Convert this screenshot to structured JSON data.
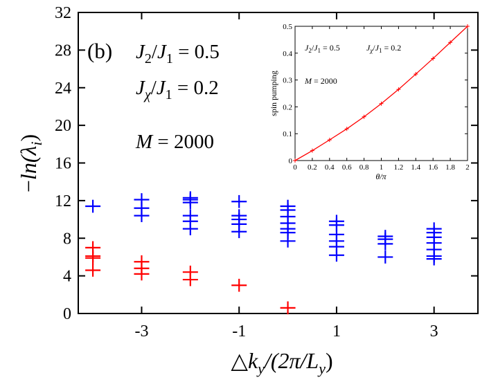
{
  "chart_data": [
    {
      "type": "scatter",
      "title": "",
      "xlabel": "△k_y/(2π/L_y)",
      "ylabel": "−ln(λ_i)",
      "xlim": [
        -4.3,
        3.9
      ],
      "ylim": [
        0,
        32
      ],
      "x_ticks": [
        -3,
        -1,
        1,
        3
      ],
      "x_tick_labels": [
        "-3",
        "-1",
        "1",
        "3"
      ],
      "y_ticks": [
        0,
        4,
        8,
        12,
        16,
        20,
        24,
        28,
        32
      ],
      "y_tick_labels": [
        "0",
        "4",
        "8",
        "12",
        "16",
        "20",
        "24",
        "28",
        "32"
      ],
      "panel_label": "(b)",
      "annotations": [
        "J₂/J₁ = 0.5",
        "J_χ/J₁ = 0.2",
        "M = 2000"
      ],
      "marker": "+",
      "series": [
        {
          "name": "red",
          "color": "#ff0000",
          "points": [
            [
              -4,
              4.6
            ],
            [
              -4,
              5.9
            ],
            [
              -4,
              6.1
            ],
            [
              -4,
              7.0
            ],
            [
              -3,
              4.2
            ],
            [
              -3,
              4.8
            ],
            [
              -3,
              5.5
            ],
            [
              -2,
              3.6
            ],
            [
              -2,
              4.4
            ],
            [
              -1,
              3.0
            ],
            [
              0,
              0.6
            ]
          ]
        },
        {
          "name": "blue",
          "color": "#0000ff",
          "points": [
            [
              -4,
              11.4
            ],
            [
              -3,
              10.4
            ],
            [
              -3,
              11.2
            ],
            [
              -3,
              12.1
            ],
            [
              -2,
              9.0
            ],
            [
              -2,
              9.8
            ],
            [
              -2,
              10.4
            ],
            [
              -2,
              11.8
            ],
            [
              -2,
              12.1
            ],
            [
              -2,
              12.3
            ],
            [
              -1,
              8.7
            ],
            [
              -1,
              9.5
            ],
            [
              -1,
              10.0
            ],
            [
              -1,
              10.4
            ],
            [
              -1,
              11.9
            ],
            [
              0,
              7.7
            ],
            [
              0,
              8.6
            ],
            [
              0,
              9.0
            ],
            [
              0,
              9.6
            ],
            [
              0,
              10.3
            ],
            [
              0,
              11.0
            ],
            [
              0,
              11.4
            ],
            [
              1,
              6.2
            ],
            [
              1,
              7.1
            ],
            [
              1,
              7.7
            ],
            [
              1,
              8.4
            ],
            [
              1,
              9.4
            ],
            [
              1,
              9.8
            ],
            [
              2,
              6.0
            ],
            [
              2,
              7.4
            ],
            [
              2,
              7.9
            ],
            [
              2,
              8.2
            ],
            [
              3,
              5.8
            ],
            [
              3,
              6.1
            ],
            [
              3,
              6.8
            ],
            [
              3,
              7.5
            ],
            [
              3,
              8.1
            ],
            [
              3,
              8.6
            ],
            [
              3,
              9.0
            ]
          ]
        }
      ]
    },
    {
      "type": "line",
      "title": "",
      "xlabel": "θ/π",
      "ylabel": "spin pumping",
      "xlim": [
        0,
        2
      ],
      "ylim": [
        0,
        0.5
      ],
      "x_ticks": [
        0,
        0.2,
        0.4,
        0.6,
        0.8,
        1,
        1.2,
        1.4,
        1.6,
        1.8,
        2
      ],
      "x_tick_labels": [
        "0",
        "0.2",
        "0.4",
        "0.6",
        "0.8",
        "1",
        "1.2",
        "1.4",
        "1.6",
        "1.8",
        "2"
      ],
      "y_ticks": [
        0,
        0.1,
        0.2,
        0.3,
        0.4,
        0.5
      ],
      "y_tick_labels": [
        "0",
        "0.1",
        "0.2",
        "0.3",
        "0.4",
        "0.5"
      ],
      "annotations": [
        "J₂/J₁ = 0.5",
        "J_χ/J₁ = 0.2",
        "M = 2000"
      ],
      "series": [
        {
          "name": "spin pumping",
          "color": "#ff0000",
          "x": [
            0,
            0.2,
            0.4,
            0.6,
            0.8,
            1.0,
            1.2,
            1.4,
            1.6,
            1.8,
            2.0
          ],
          "values": [
            0.0,
            0.037,
            0.077,
            0.118,
            0.163,
            0.212,
            0.265,
            0.322,
            0.38,
            0.44,
            0.5
          ]
        }
      ]
    }
  ]
}
